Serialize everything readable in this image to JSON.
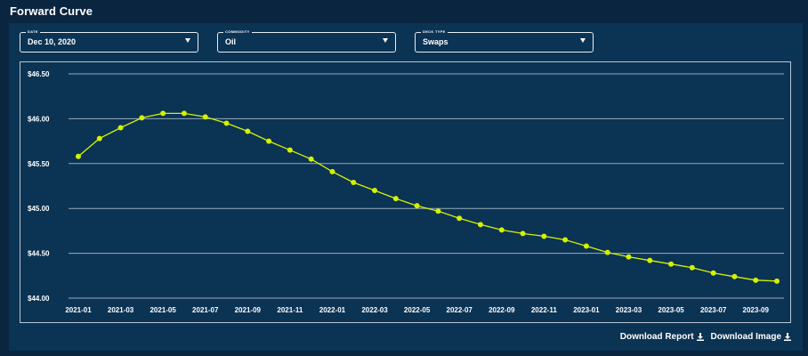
{
  "page": {
    "title": "Forward Curve"
  },
  "filters": {
    "date": {
      "legend": "Date",
      "value": "Dec 10, 2020"
    },
    "commodity": {
      "legend": "Commodity",
      "value": "Oil"
    },
    "deck_type": {
      "legend": "Deck Type",
      "value": "Swaps"
    }
  },
  "actions": {
    "download_report": "Download Report",
    "download_image": "Download Image"
  },
  "colors": {
    "background": "#0a2540",
    "panel": "#0b3354",
    "series": "#d4f200",
    "grid": "#c5d2de"
  },
  "chart_data": {
    "type": "line",
    "title": "",
    "xlabel": "",
    "ylabel": "",
    "ylim": [
      44.0,
      46.5
    ],
    "y_ticks": [
      "$44.00",
      "$44.50",
      "$45.00",
      "$45.50",
      "$46.00",
      "$46.50"
    ],
    "y_tick_values": [
      44.0,
      44.5,
      45.0,
      45.5,
      46.0,
      46.5
    ],
    "x_tick_labels": [
      "2021-01",
      "2021-03",
      "2021-05",
      "2021-07",
      "2021-09",
      "2021-11",
      "2022-01",
      "2022-03",
      "2022-05",
      "2022-07",
      "2022-09",
      "2022-11",
      "2023-01",
      "2023-03",
      "2023-05",
      "2023-07",
      "2023-09"
    ],
    "grid": true,
    "legend": "none",
    "series": [
      {
        "x": [
          "2021-01",
          "2021-02",
          "2021-03",
          "2021-04",
          "2021-05",
          "2021-06",
          "2021-07",
          "2021-08",
          "2021-09",
          "2021-10",
          "2021-11",
          "2021-12",
          "2022-01",
          "2022-02",
          "2022-03",
          "2022-04",
          "2022-05",
          "2022-06",
          "2022-07",
          "2022-08",
          "2022-09",
          "2022-10",
          "2022-11",
          "2022-12",
          "2023-01",
          "2023-02",
          "2023-03",
          "2023-04",
          "2023-05",
          "2023-06",
          "2023-07",
          "2023-08",
          "2023-09",
          "2023-10"
        ],
        "values": [
          45.58,
          45.78,
          45.9,
          46.01,
          46.06,
          46.06,
          46.02,
          45.95,
          45.86,
          45.75,
          45.65,
          45.55,
          45.41,
          45.29,
          45.2,
          45.11,
          45.03,
          44.97,
          44.89,
          44.82,
          44.76,
          44.72,
          44.69,
          44.65,
          44.58,
          44.51,
          44.46,
          44.42,
          44.38,
          44.34,
          44.28,
          44.24,
          44.2,
          44.19
        ]
      }
    ]
  }
}
